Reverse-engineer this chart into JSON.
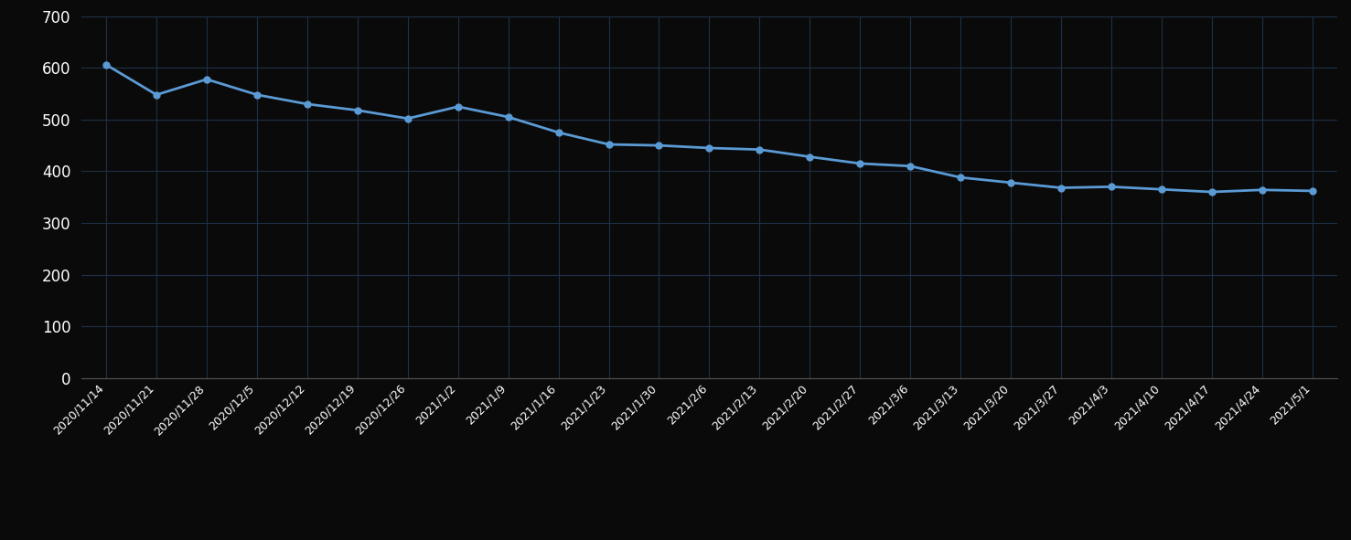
{
  "dates": [
    "2020/11/14",
    "2020/11/21",
    "2020/11/28",
    "2020/12/5",
    "2020/12/12",
    "2020/12/19",
    "2020/12/26",
    "2021/1/2",
    "2021/1/9",
    "2021/1/16",
    "2021/1/23",
    "2021/1/30",
    "2021/2/6",
    "2021/2/13",
    "2021/2/20",
    "2021/2/27",
    "2021/3/6",
    "2021/3/13",
    "2021/3/20",
    "2021/3/27",
    "2021/4/3",
    "2021/4/10",
    "2021/4/17",
    "2021/4/24",
    "2021/5/1"
  ],
  "values": [
    606,
    548,
    578,
    548,
    530,
    518,
    502,
    525,
    505,
    475,
    452,
    450,
    445,
    442,
    428,
    415,
    410,
    388,
    378,
    368,
    370,
    365,
    360,
    364,
    362
  ],
  "line_color": "#5b9bd5",
  "marker_color": "#5b9bd5",
  "background_color": "#0a0a0a",
  "plot_bg_color": "#0a0a0a",
  "grid_color": "#1e3048",
  "tick_color": "#ffffff",
  "ylim": [
    0,
    700
  ],
  "yticks": [
    0,
    100,
    200,
    300,
    400,
    500,
    600,
    700
  ],
  "line_width": 2.0,
  "marker_size": 5,
  "tick_fontsize": 12,
  "x_tick_fontsize": 9
}
